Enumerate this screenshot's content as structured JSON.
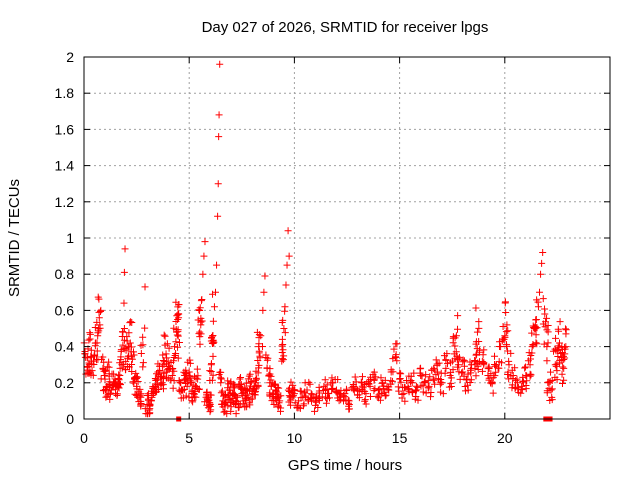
{
  "chart_data": {
    "type": "scatter",
    "title": "Day 027 of 2026, SRMTID for receiver lpgs",
    "xlabel": "GPS time / hours",
    "ylabel": "SRMTID / TECUs",
    "xlim": [
      0,
      25
    ],
    "ylim": [
      0,
      2
    ],
    "xticks": [
      "0",
      "5",
      "10",
      "15",
      "20"
    ],
    "yticks": [
      "0",
      "0.2",
      "0.4",
      "0.6",
      "0.8",
      "1",
      "1.2",
      "1.4",
      "1.6",
      "1.8",
      "2"
    ],
    "grid": true,
    "marker": "+",
    "color": "#ff0000",
    "series": [
      {
        "name": "SRMTID",
        "points": [
          [
            0.05,
            0.36
          ],
          [
            0.15,
            0.34
          ],
          [
            0.25,
            0.3
          ],
          [
            0.35,
            0.38
          ],
          [
            0.45,
            0.32
          ],
          [
            0.55,
            0.42
          ],
          [
            0.65,
            0.46
          ],
          [
            0.75,
            0.52
          ],
          [
            0.8,
            0.6
          ],
          [
            0.9,
            0.28
          ],
          [
            1.0,
            0.22
          ],
          [
            1.1,
            0.18
          ],
          [
            1.2,
            0.25
          ],
          [
            1.3,
            0.16
          ],
          [
            1.4,
            0.2
          ],
          [
            1.5,
            0.14
          ],
          [
            1.6,
            0.19
          ],
          [
            1.7,
            0.24
          ],
          [
            1.8,
            0.3
          ],
          [
            1.85,
            0.48
          ],
          [
            1.9,
            0.64
          ],
          [
            1.92,
            0.81
          ],
          [
            1.95,
            0.94
          ],
          [
            2.0,
            0.38
          ],
          [
            2.1,
            0.4
          ],
          [
            2.2,
            0.42
          ],
          [
            2.3,
            0.33
          ],
          [
            2.4,
            0.22
          ],
          [
            2.5,
            0.18
          ],
          [
            2.6,
            0.15
          ],
          [
            2.7,
            0.12
          ],
          [
            2.8,
            0.41
          ],
          [
            2.9,
            0.73
          ],
          [
            3.0,
            0.08
          ],
          [
            3.1,
            0.05
          ],
          [
            3.2,
            0.1
          ],
          [
            3.3,
            0.14
          ],
          [
            3.4,
            0.18
          ],
          [
            3.5,
            0.22
          ],
          [
            3.6,
            0.26
          ],
          [
            3.7,
            0.2
          ],
          [
            3.8,
            0.3
          ],
          [
            3.9,
            0.36
          ],
          [
            4.0,
            0.32
          ],
          [
            4.1,
            0.28
          ],
          [
            4.2,
            0.24
          ],
          [
            4.3,
            0.4
          ],
          [
            4.4,
            0.48
          ],
          [
            4.45,
            0.55
          ],
          [
            4.5,
            0.58
          ],
          [
            4.6,
            0.2
          ],
          [
            4.7,
            0.16
          ],
          [
            4.8,
            0.22
          ],
          [
            4.9,
            0.18
          ],
          [
            5.0,
            0.26
          ],
          [
            5.1,
            0.2
          ],
          [
            5.2,
            0.14
          ],
          [
            5.3,
            0.18
          ],
          [
            5.4,
            0.22
          ],
          [
            5.5,
            0.48
          ],
          [
            5.55,
            0.52
          ],
          [
            5.6,
            0.66
          ],
          [
            5.65,
            0.8
          ],
          [
            5.7,
            0.9
          ],
          [
            5.75,
            0.98
          ],
          [
            5.8,
            0.12
          ],
          [
            5.9,
            0.1
          ],
          [
            6.0,
            0.08
          ],
          [
            6.05,
            0.3
          ],
          [
            6.1,
            0.42
          ],
          [
            6.15,
            0.54
          ],
          [
            6.2,
            0.62
          ],
          [
            6.25,
            0.7
          ],
          [
            6.3,
            0.85
          ],
          [
            6.35,
            1.12
          ],
          [
            6.38,
            1.3
          ],
          [
            6.4,
            1.56
          ],
          [
            6.42,
            1.68
          ],
          [
            6.45,
            1.96
          ],
          [
            6.5,
            0.2
          ],
          [
            6.6,
            0.1
          ],
          [
            6.7,
            0.08
          ],
          [
            6.8,
            0.12
          ],
          [
            6.9,
            0.16
          ],
          [
            7.0,
            0.1
          ],
          [
            7.1,
            0.14
          ],
          [
            7.2,
            0.08
          ],
          [
            7.3,
            0.12
          ],
          [
            7.4,
            0.18
          ],
          [
            7.5,
            0.14
          ],
          [
            7.6,
            0.1
          ],
          [
            7.7,
            0.16
          ],
          [
            7.8,
            0.12
          ],
          [
            7.9,
            0.2
          ],
          [
            8.0,
            0.14
          ],
          [
            8.1,
            0.18
          ],
          [
            8.2,
            0.22
          ],
          [
            8.3,
            0.4
          ],
          [
            8.4,
            0.46
          ],
          [
            8.5,
            0.6
          ],
          [
            8.55,
            0.7
          ],
          [
            8.6,
            0.79
          ],
          [
            8.7,
            0.28
          ],
          [
            8.8,
            0.24
          ],
          [
            8.9,
            0.18
          ],
          [
            9.0,
            0.14
          ],
          [
            9.1,
            0.16
          ],
          [
            9.2,
            0.12
          ],
          [
            9.3,
            0.1
          ],
          [
            9.4,
            0.32
          ],
          [
            9.5,
            0.5
          ],
          [
            9.55,
            0.62
          ],
          [
            9.6,
            0.74
          ],
          [
            9.65,
            0.85
          ],
          [
            9.7,
            1.04
          ],
          [
            9.75,
            0.9
          ],
          [
            9.8,
            0.12
          ],
          [
            9.9,
            0.16
          ],
          [
            10.0,
            0.14
          ],
          [
            10.2,
            0.1
          ],
          [
            10.4,
            0.12
          ],
          [
            10.6,
            0.16
          ],
          [
            10.8,
            0.14
          ],
          [
            11.0,
            0.1
          ],
          [
            11.2,
            0.12
          ],
          [
            11.4,
            0.18
          ],
          [
            11.6,
            0.14
          ],
          [
            11.8,
            0.2
          ],
          [
            12.0,
            0.16
          ],
          [
            12.2,
            0.12
          ],
          [
            12.4,
            0.14
          ],
          [
            12.6,
            0.1
          ],
          [
            12.8,
            0.18
          ],
          [
            13.0,
            0.16
          ],
          [
            13.2,
            0.2
          ],
          [
            13.4,
            0.14
          ],
          [
            13.6,
            0.18
          ],
          [
            13.8,
            0.22
          ],
          [
            14.0,
            0.16
          ],
          [
            14.2,
            0.2
          ],
          [
            14.4,
            0.18
          ],
          [
            14.6,
            0.26
          ],
          [
            14.8,
            0.34
          ],
          [
            15.0,
            0.22
          ],
          [
            15.2,
            0.14
          ],
          [
            15.4,
            0.18
          ],
          [
            15.6,
            0.2
          ],
          [
            15.8,
            0.16
          ],
          [
            16.0,
            0.24
          ],
          [
            16.2,
            0.2
          ],
          [
            16.4,
            0.18
          ],
          [
            16.6,
            0.22
          ],
          [
            16.8,
            0.26
          ],
          [
            17.0,
            0.2
          ],
          [
            17.2,
            0.28
          ],
          [
            17.4,
            0.24
          ],
          [
            17.6,
            0.36
          ],
          [
            17.7,
            0.46
          ],
          [
            17.8,
            0.3
          ],
          [
            18.0,
            0.26
          ],
          [
            18.2,
            0.22
          ],
          [
            18.4,
            0.28
          ],
          [
            18.6,
            0.32
          ],
          [
            18.7,
            0.48
          ],
          [
            18.8,
            0.38
          ],
          [
            19.0,
            0.3
          ],
          [
            19.2,
            0.24
          ],
          [
            19.4,
            0.2
          ],
          [
            19.6,
            0.3
          ],
          [
            19.8,
            0.4
          ],
          [
            20.0,
            0.46
          ],
          [
            20.1,
            0.52
          ],
          [
            20.2,
            0.3
          ],
          [
            20.4,
            0.24
          ],
          [
            20.6,
            0.2
          ],
          [
            20.8,
            0.18
          ],
          [
            21.0,
            0.24
          ],
          [
            21.2,
            0.3
          ],
          [
            21.3,
            0.4
          ],
          [
            21.4,
            0.5
          ],
          [
            21.5,
            0.55
          ],
          [
            21.6,
            0.62
          ],
          [
            21.65,
            0.7
          ],
          [
            21.7,
            0.8
          ],
          [
            21.75,
            0.86
          ],
          [
            21.8,
            0.92
          ],
          [
            21.9,
            0.58
          ],
          [
            22.0,
            0.4
          ],
          [
            22.1,
            0.2
          ],
          [
            22.2,
            0.16
          ],
          [
            22.4,
            0.3
          ],
          [
            22.5,
            0.38
          ],
          [
            22.6,
            0.42
          ],
          [
            22.7,
            0.34
          ],
          [
            22.8,
            0.28
          ],
          [
            22.9,
            0.4
          ]
        ],
        "zero_points": [
          [
            4.5,
            0.0
          ],
          [
            21.95,
            0.0
          ],
          [
            22.05,
            0.0
          ],
          [
            22.15,
            0.0
          ]
        ]
      }
    ]
  }
}
